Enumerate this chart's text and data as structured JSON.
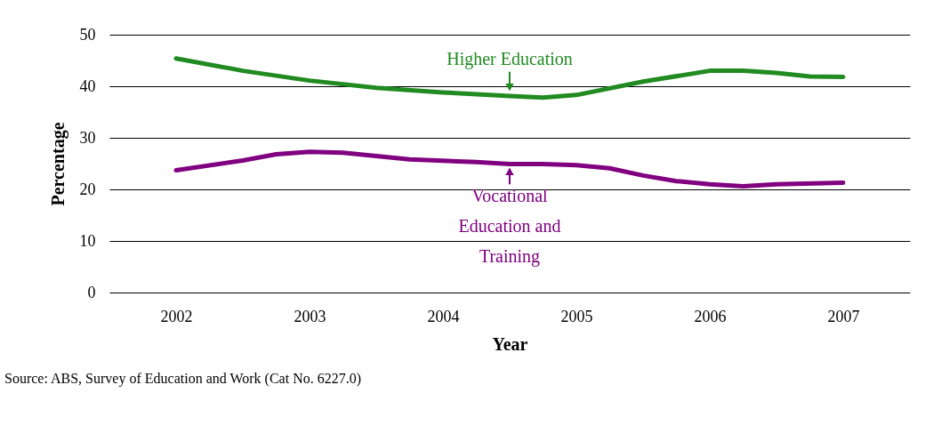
{
  "chart_data": {
    "type": "line",
    "xlabel": "Year",
    "ylabel": "Percentage",
    "xlim": [
      2001.5,
      2007.5
    ],
    "xticks": [
      2002,
      2003,
      2004,
      2005,
      2006,
      2007
    ],
    "ylim": [
      0,
      50
    ],
    "yticks": [
      0,
      10,
      20,
      30,
      40,
      50
    ],
    "grid": "y",
    "marker": "none",
    "line_style": "solid",
    "series": [
      {
        "color": "#218a21",
        "x": [
          2002,
          2002.5,
          2003,
          2003.5,
          2004,
          2004.5,
          2004.75,
          2005,
          2005.5,
          2006,
          2006.25,
          2006.5,
          2006.75,
          2007
        ],
        "values": [
          45.4,
          43.0,
          41.1,
          39.7,
          38.8,
          38.1,
          37.8,
          38.3,
          40.9,
          43.0,
          43.0,
          42.6,
          41.9,
          41.8
        ]
      },
      {
        "color": "#800080",
        "x": [
          2002,
          2002.5,
          2002.75,
          2003,
          2003.25,
          2003.75,
          2004.25,
          2004.5,
          2004.75,
          2005,
          2005.25,
          2005.5,
          2005.75,
          2006,
          2006.25,
          2006.5,
          2007
        ],
        "values": [
          23.7,
          25.6,
          26.8,
          27.3,
          27.1,
          25.8,
          25.3,
          24.9,
          24.9,
          24.7,
          24.1,
          22.7,
          21.6,
          21.0,
          20.6,
          21.0,
          21.3
        ]
      }
    ],
    "annotations": [
      {
        "text": "Higher Education",
        "x": 2004.5,
        "y": 38.3
      },
      {
        "text": "Vocational Education and Training",
        "x": 2004.5,
        "y": 25.0
      },
      "Source: ABS, Survey of Education and Work (Cat No. 6227.0)"
    ]
  }
}
